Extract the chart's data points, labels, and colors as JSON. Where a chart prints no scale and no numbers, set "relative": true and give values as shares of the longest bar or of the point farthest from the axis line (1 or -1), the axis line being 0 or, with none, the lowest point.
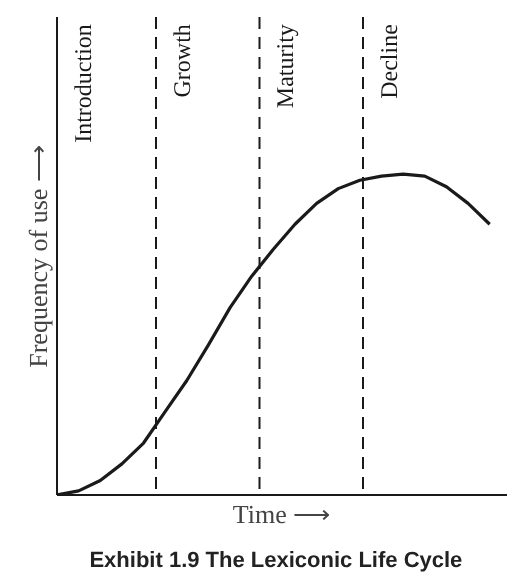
{
  "chart_data": {
    "type": "line",
    "title": "Exhibit 1.9   The Lexiconic Life Cycle",
    "xlabel": "Time ⟶",
    "ylabel": "Frequency of use ⟶",
    "categories": [
      null,
      null,
      null,
      null,
      null,
      null,
      null,
      null,
      null,
      null,
      null,
      null,
      null,
      null,
      null,
      null,
      null,
      null,
      null,
      null,
      null
    ],
    "values": [
      0,
      0.013,
      0.045,
      0.097,
      0.162,
      0.26,
      0.357,
      0.468,
      0.584,
      0.682,
      0.766,
      0.844,
      0.909,
      0.955,
      0.981,
      0.994,
      1.0,
      0.994,
      0.961,
      0.909,
      0.844
    ],
    "color": "#1a1a1a",
    "relative": true,
    "annotations": [
      "Introduction",
      "Growth",
      "Maturity",
      "Decline"
    ]
  }
}
